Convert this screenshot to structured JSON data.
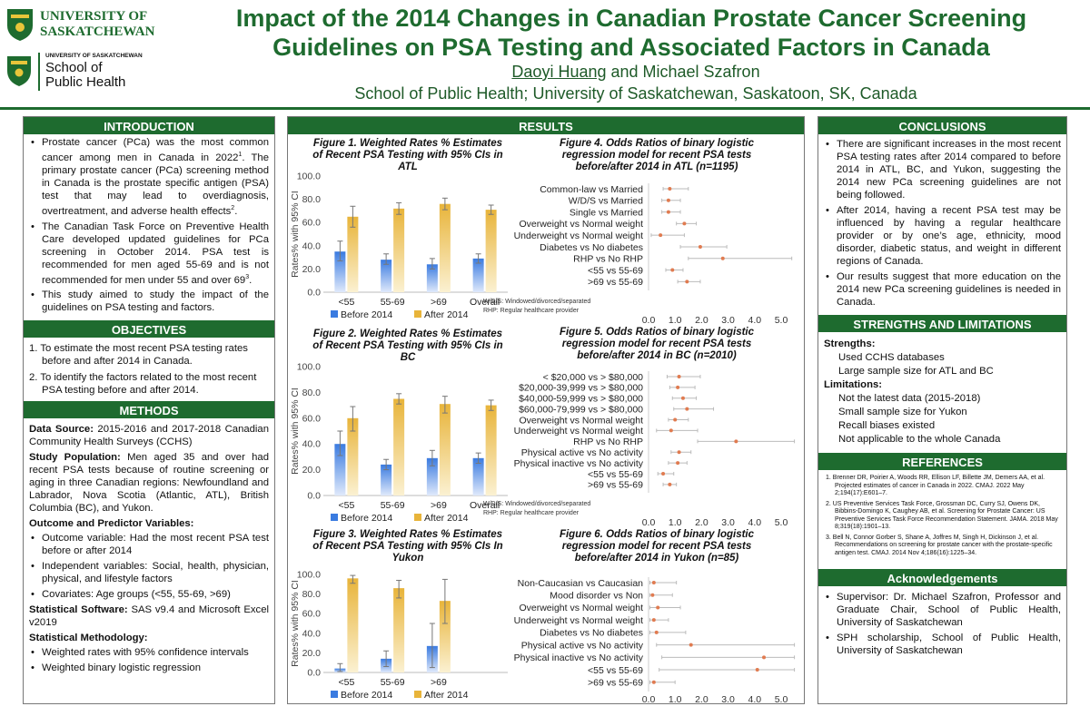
{
  "header": {
    "logo1_lines": [
      "UNIVERSITY OF",
      "SASKATCHEWAN"
    ],
    "logo2_small": "UNIVERSITY OF SASKATCHEWAN",
    "logo2_lines": [
      "School of",
      "Public Health"
    ],
    "title_line1": "Impact of the 2014 Changes in Canadian Prostate Cancer Screening",
    "title_line2": "Guidelines on PSA Testing and Associated Factors in Canada",
    "author1": "Daoyi Huang",
    "author_rest": " and Michael Szafron",
    "affiliation": "School of Public Health; University of Saskatchewan, Saskatoon, SK, Canada"
  },
  "introduction": {
    "heading": "INTRODUCTION",
    "b1": "Prostate cancer (PCa) was the most common cancer among men in Canada in 2022",
    "b1_sup": "1",
    "b1_rest": ". The primary prostate cancer (PCa) screening method in Canada is the prostate specific antigen (PSA) test that may lead to overdiagnosis, overtreatment, and adverse health effects",
    "b1_sup2": "2",
    "b1_end": ".",
    "b2": "The Canadian Task Force on Preventive Health Care developed updated guidelines for PCa screening in October 2014. PSA test is recommended for men aged 55-69 and is not recommended for men under 55 and over 69",
    "b2_sup": "3",
    "b2_end": ".",
    "b3": "This study aimed to study the impact of the guidelines on PSA testing and factors."
  },
  "objectives": {
    "heading": "OBJECTIVES",
    "o1": "1.  To estimate the most recent PSA testing rates before and after 2014 in Canada.",
    "o2": "2.  To identify the factors related to the most recent PSA testing before and after 2014."
  },
  "methods": {
    "heading": "METHODS",
    "ds_label": "Data Source:",
    "ds_text": " 2015-2016 and 2017-2018 Canadian Community Health Surveys (CCHS)",
    "sp_label": "Study Population:",
    "sp_text": " Men aged 35 and over had recent PSA tests because of routine screening or aging in three Canadian regions: Newfoundland and Labrador, Nova Scotia (Atlantic, ATL), British Columbia (BC), and Yukon.",
    "op_label": "Outcome and Predictor Variables:",
    "op1": "Outcome variable: Had the most recent PSA test before or after 2014",
    "op2": "Independent variables: Social, health, physician, physical, and lifestyle factors",
    "op3": "Covariates: Age groups (<55, 55-69, >69)",
    "ss_label": "Statistical Software:",
    "ss_text": " SAS v9.4 and Microsoft Excel v2019",
    "sm_label": "Statistical Methodology:",
    "sm1": "Weighted rates with 95% confidence intervals",
    "sm2": "Weighted binary logistic regression"
  },
  "results": {
    "heading": "RESULTS"
  },
  "fig1": {
    "num": "Figure 1.",
    "title": " Weighted Rates % Estimates of Recent PSA Testing with 95% CIs in ATL"
  },
  "fig2": {
    "num": "Figure 2.",
    "title": " Weighted Rates % Estimates of Recent PSA Testing with 95% CIs in BC"
  },
  "fig3": {
    "num": "Figure 3.",
    "title": " Weighted Rates % Estimates of Recent PSA Testing with 95% CIs  In Yukon"
  },
  "fig4": {
    "num": "Figure 4.",
    "title": " Odds Ratios of binary logistic regression model for recent PSA tests before/after 2014 in ATL (n=1195)"
  },
  "fig5": {
    "num": "Figure 5.",
    "title": " Odds Ratios of binary logistic regression model for recent PSA tests before/after 2014 in BC (n=2010)"
  },
  "fig6": {
    "num": "Figure 6.",
    "title": " Odds Ratios of binary logistic regression model for recent PSA tests before/after 2014 in Yukon (n=85)"
  },
  "chart_data": [
    {
      "type": "bar",
      "id": "fig1",
      "title": "Figure 1. Weighted Rates % Estimates of Recent PSA Testing with 95% CIs in ATL",
      "ylabel": "Rates% with 95% CI",
      "ylim": [
        0,
        100
      ],
      "yticks": [
        "0.0",
        "20.0",
        "40.0",
        "60.0",
        "80.0",
        "100.0"
      ],
      "categories": [
        "<55",
        "55-69",
        ">69",
        "Overall"
      ],
      "series": [
        {
          "name": "Before 2014",
          "values": [
            35,
            28,
            24,
            29
          ],
          "lo": [
            27,
            24,
            20,
            25
          ],
          "hi": [
            44,
            33,
            29,
            33
          ]
        },
        {
          "name": "After 2014",
          "values": [
            65,
            72,
            76,
            71
          ],
          "lo": [
            56,
            67,
            71,
            67
          ],
          "hi": [
            74,
            77,
            81,
            75
          ]
        }
      ]
    },
    {
      "type": "bar",
      "id": "fig2",
      "title": "Figure 2. Weighted Rates % Estimates of Recent PSA Testing with 95% CIs in BC",
      "ylabel": "Rates% with 95% CI",
      "ylim": [
        0,
        100
      ],
      "yticks": [
        "0.0",
        "20.0",
        "40.0",
        "60.0",
        "80.0",
        "100.0"
      ],
      "categories": [
        "<55",
        "55-69",
        ">69",
        "Overall"
      ],
      "series": [
        {
          "name": "Before 2014",
          "values": [
            40,
            24,
            29,
            29
          ],
          "lo": [
            31,
            20,
            23,
            25
          ],
          "hi": [
            50,
            28,
            35,
            33
          ]
        },
        {
          "name": "After 2014",
          "values": [
            60,
            75,
            71,
            70
          ],
          "lo": [
            50,
            71,
            64,
            66
          ],
          "hi": [
            69,
            79,
            77,
            74
          ]
        }
      ]
    },
    {
      "type": "bar",
      "id": "fig3",
      "title": "Figure 3. Weighted Rates % Estimates of Recent PSA Testing with 95% CIs In Yukon",
      "ylabel": "Rates% with 95% CI",
      "ylim": [
        0,
        100
      ],
      "yticks": [
        "0.0",
        "20.0",
        "40.0",
        "60.0",
        "80.0",
        "100.0"
      ],
      "categories": [
        "<55",
        "55-69",
        ">69"
      ],
      "series": [
        {
          "name": "Before 2014",
          "values": [
            4,
            14,
            27
          ],
          "lo": [
            1,
            6,
            5
          ],
          "hi": [
            9,
            22,
            50
          ]
        },
        {
          "name": "After 2014",
          "values": [
            96,
            86,
            73
          ],
          "lo": [
            91,
            76,
            50
          ],
          "hi": [
            99,
            94,
            95
          ]
        }
      ]
    },
    {
      "type": "forest",
      "id": "fig4",
      "xlim": [
        0,
        5
      ],
      "xticks": [
        "0.0",
        "1.0",
        "2.0",
        "3.0",
        "4.0",
        "5.0"
      ],
      "labels": [
        "Common-law vs Married",
        "W/D/S vs Married",
        "Single vs Married",
        "Overweight vs Normal weight",
        "Underweight vs Normal weight",
        "Diabetes vs No diabetes",
        "RHP vs No RHP",
        "<55 vs 55-69",
        ">69 vs 55-69"
      ],
      "or": [
        0.8,
        0.75,
        0.75,
        1.35,
        0.45,
        1.95,
        2.8,
        0.9,
        1.45
      ],
      "lo": [
        0.55,
        0.5,
        0.5,
        1.05,
        0.1,
        1.2,
        1.5,
        0.65,
        1.1
      ],
      "hi": [
        1.5,
        1.2,
        1.2,
        1.8,
        1.35,
        2.95,
        5.4,
        1.3,
        1.95
      ],
      "footnotes": [
        "W/D/S: Windowed/divorced/separated",
        "RHP: Regular healthcare provider"
      ]
    },
    {
      "type": "forest",
      "id": "fig5",
      "xlim": [
        0,
        5
      ],
      "xticks": [
        "0.0",
        "1.0",
        "2.0",
        "3.0",
        "4.0",
        "5.0"
      ],
      "labels": [
        "< $20,000 vs > $80,000",
        "$20,000-39,999 vs > $80,000",
        "$40,000-59,999 vs > $80,000",
        "$60,000-79,999 vs > $80,000",
        "Overweight vs Normal weight",
        "Underweight vs Normal weight",
        "RHP vs No RHP",
        "Physical active  vs No activity",
        "Physical inactive vs No activity",
        "<55 vs 55-69",
        ">69 vs 55-69"
      ],
      "or": [
        1.15,
        1.1,
        1.3,
        1.45,
        1.0,
        0.85,
        3.3,
        1.15,
        1.1,
        0.55,
        0.8
      ],
      "lo": [
        0.7,
        0.8,
        0.9,
        0.95,
        0.75,
        0.3,
        1.85,
        0.85,
        0.75,
        0.35,
        0.55
      ],
      "hi": [
        1.95,
        1.75,
        1.8,
        2.45,
        1.5,
        1.85,
        5.5,
        1.6,
        1.45,
        0.95,
        1.05
      ],
      "footnotes": [
        "W/D/S: Windowed/divorced/separated",
        "RHP: Regular healthcare provider"
      ]
    },
    {
      "type": "forest",
      "id": "fig6",
      "xlim": [
        0,
        5
      ],
      "xticks": [
        "0.0",
        "1.0",
        "2.0",
        "3.0",
        "4.0",
        "5.0"
      ],
      "labels": [
        "Non-Caucasian vs Caucasian",
        "Mood disorder vs Non",
        "Overweight vs Normal weight",
        "Underweight vs Normal weight",
        "Diabetes vs No diabetes",
        "Physical active  vs No activity",
        "Physical inactive vs No activity",
        "<55 vs 55-69",
        ">69 vs 55-69"
      ],
      "or": [
        0.2,
        0.15,
        0.35,
        0.2,
        0.3,
        1.6,
        4.35,
        4.1,
        0.2
      ],
      "lo": [
        0.05,
        0.05,
        0.05,
        0.05,
        0.05,
        0.3,
        0.5,
        0.4,
        0.05
      ],
      "hi": [
        1.05,
        0.9,
        1.2,
        0.75,
        1.4,
        5.5,
        5.5,
        5.5,
        1.0
      ]
    }
  ],
  "legend": {
    "before": "Before 2014",
    "after": "After 2014"
  },
  "conclusions": {
    "heading": "CONCLUSIONS",
    "c1": "There are significant increases in the most recent PSA testing rates after 2014 compared to before 2014 in ATL, BC, and Yukon, suggesting the 2014 new PCa screening guidelines are not being followed.",
    "c2": "After 2014, having a recent PSA test may be influenced by having a regular healthcare provider or by one’s age, ethnicity, mood disorder, diabetic status, and weight in different regions of Canada.",
    "c3": "Our results suggest that more education on the 2014 new PCa screening guidelines is needed in Canada."
  },
  "strengths": {
    "heading": "STRENGTHS AND LIMITATIONS",
    "s_label": "Strengths:",
    "s1": "Used CCHS databases",
    "s2": "Large sample size for ATL and BC",
    "l_label": "Limitations:",
    "l1": "Not the latest data (2015-2018)",
    "l2": "Small sample size for Yukon",
    "l3": "Recall biases existed",
    "l4": "Not applicable to the whole Canada"
  },
  "references": {
    "heading": "REFERENCES",
    "r1": "1.  Brenner DR, Poirier A, Woods RR, Ellison LF, Billette JM, Demers AA, et al. Projected estimates of cancer in Canada in 2022. CMAJ. 2022 May 2;194(17):E601–7.",
    "r2": "2.  US Preventive Services Task Force, Grossman DC, Curry SJ, Owens DK, Bibbins-Domingo K, Caughey AB, et al. Screening for Prostate Cancer: US Preventive Services Task Force Recommendation Statement. JAMA. 2018 May 8;319(18):1901–13.",
    "r3": "3.  Bell N, Connor Gorber S, Shane A, Joffres M, Singh H, Dickinson J, et al. Recommendations on screening for prostate cancer with the prostate-specific antigen test. CMAJ. 2014 Nov 4;186(16):1225–34."
  },
  "ack": {
    "heading": "Acknowledgements",
    "a1": "Supervisor: Dr. Michael Szafron, Professor and Graduate Chair, School of Public Health, University of Saskatchewan",
    "a2": "SPH scholarship, School of Public Health, University of Saskatchewan"
  },
  "colors": {
    "green": "#1e6b2f",
    "before": "#3a7be0",
    "after": "#e8b43a",
    "dot": "#e07b50"
  }
}
